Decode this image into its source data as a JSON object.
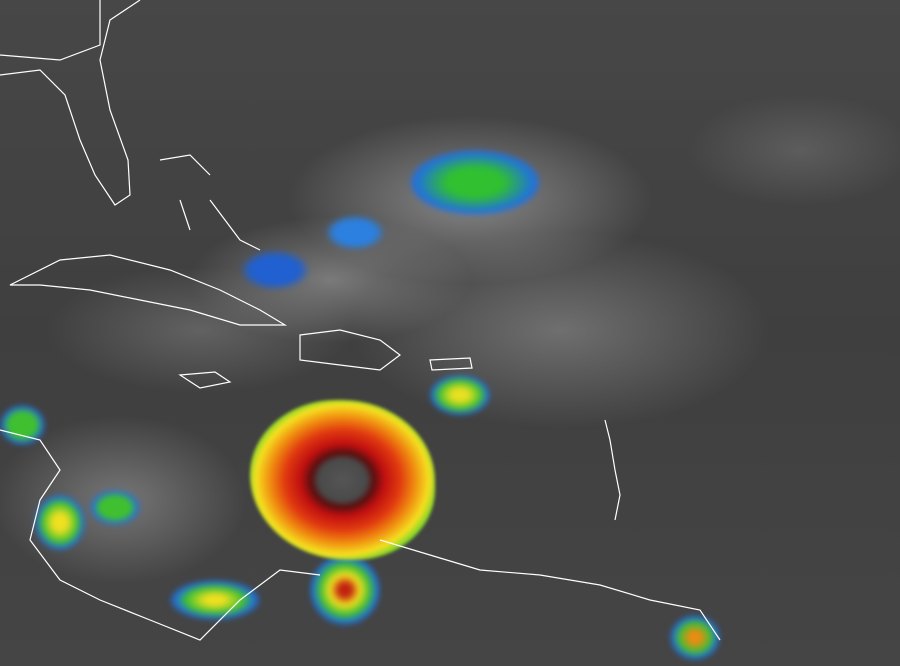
{
  "image": {
    "subject": "infrared-satellite-view",
    "colors": {
      "background": "#3c3c3c",
      "cloud": "#bdbdbd",
      "storm_core": "#c01010",
      "storm_mid": "#f08a10",
      "storm_outer": "#50d030",
      "convection_blue": "#2080e0",
      "coastline": "#ffffff"
    }
  }
}
